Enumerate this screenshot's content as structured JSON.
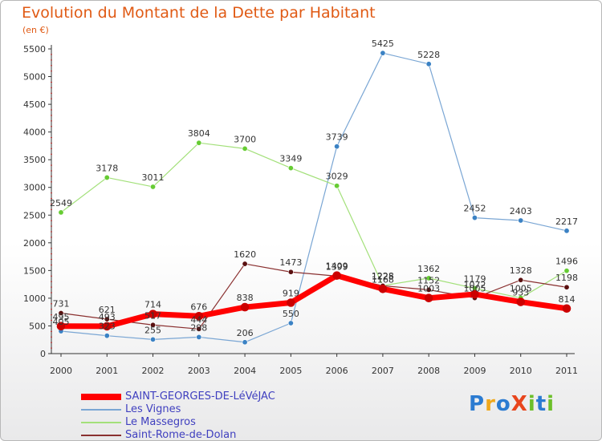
{
  "title": "Evolution du Montant de la Dette par Habitant",
  "subtitle": "(en €)",
  "logo_text": "ProXiti",
  "chart_data": {
    "type": "line",
    "x": [
      "2000",
      "2001",
      "2002",
      "2003",
      "2004",
      "2005",
      "2006",
      "2007",
      "2008",
      "2009",
      "2010",
      "2011"
    ],
    "ylim": [
      0,
      5500
    ],
    "yticks": [
      0,
      500,
      1000,
      1500,
      2000,
      2500,
      3000,
      3500,
      4000,
      4500,
      5000,
      5500
    ],
    "grid": false,
    "legend_position": "bottom-left",
    "series": [
      {
        "name": "SAINT-GEORGES-DE-LéVéJAC",
        "color": "#ff0000",
        "marker": "#cc0000",
        "width": 7,
        "values": [
          495,
          493,
          714,
          676,
          838,
          919,
          1409,
          1168,
          1003,
          1072,
          933,
          814
        ]
      },
      {
        "name": "Les Vignes",
        "color": "#7aa6d4",
        "marker": "#3b82c4",
        "width": 1.2,
        "values": [
          405,
          323,
          255,
          298,
          206,
          550,
          3739,
          5425,
          5228,
          2452,
          2403,
          2217
        ]
      },
      {
        "name": "Le Massegros",
        "color": "#a3e07a",
        "marker": "#66cc33",
        "width": 1.2,
        "values": [
          2549,
          3178,
          3011,
          3804,
          3700,
          3349,
          3029,
          1228,
          1362,
          1179,
          1005,
          1496
        ]
      },
      {
        "name": "Saint-Rome-de-Dolan",
        "color": "#8a3030",
        "marker": "#5a1010",
        "width": 1.2,
        "values": [
          731,
          621,
          517,
          444,
          1620,
          1473,
          1399,
          1225,
          1152,
          1005,
          1328,
          1198
        ]
      }
    ]
  }
}
